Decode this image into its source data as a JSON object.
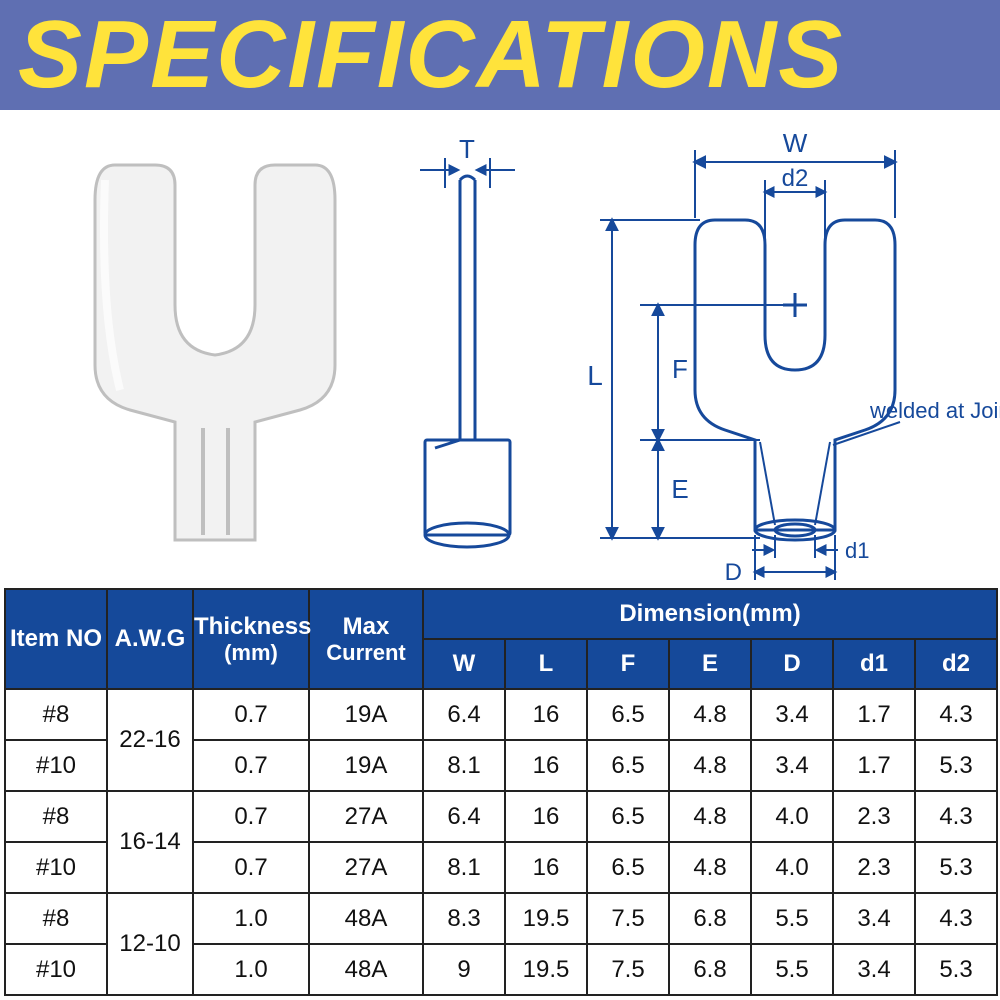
{
  "header": {
    "title": "SPECIFICATIONS"
  },
  "colors": {
    "header_bg": "#5f6fb2",
    "header_text": "#ffe33b",
    "table_header_bg": "#15499a",
    "table_header_text": "#ffffff",
    "border": "#222222",
    "diagram_stroke": "#16499b",
    "background": "#ffffff"
  },
  "diagram": {
    "labels": {
      "T": "T",
      "W": "W",
      "d2": "d2",
      "L": "L",
      "F": "F",
      "E": "E",
      "d1": "d1",
      "D": "D",
      "joint": "welded at Joints"
    }
  },
  "table": {
    "headers": {
      "item_no": "Item NO",
      "awg": "A.W.G",
      "thickness": "Thickness",
      "thickness_unit": "(mm)",
      "max_current": "Max",
      "max_current2": "Current",
      "dimension": "Dimension(mm)",
      "W": "W",
      "L": "L",
      "F": "F",
      "E": "E",
      "D": "D",
      "d1": "d1",
      "d2": "d2"
    },
    "groups": [
      {
        "awg": "22-16",
        "rows": [
          {
            "item": "#8",
            "thk": "0.7",
            "max": "19A",
            "W": "6.4",
            "L": "16",
            "F": "6.5",
            "E": "4.8",
            "D": "3.4",
            "d1": "1.7",
            "d2": "4.3"
          },
          {
            "item": "#10",
            "thk": "0.7",
            "max": "19A",
            "W": "8.1",
            "L": "16",
            "F": "6.5",
            "E": "4.8",
            "D": "3.4",
            "d1": "1.7",
            "d2": "5.3"
          }
        ]
      },
      {
        "awg": "16-14",
        "rows": [
          {
            "item": "#8",
            "thk": "0.7",
            "max": "27A",
            "W": "6.4",
            "L": "16",
            "F": "6.5",
            "E": "4.8",
            "D": "4.0",
            "d1": "2.3",
            "d2": "4.3"
          },
          {
            "item": "#10",
            "thk": "0.7",
            "max": "27A",
            "W": "8.1",
            "L": "16",
            "F": "6.5",
            "E": "4.8",
            "D": "4.0",
            "d1": "2.3",
            "d2": "5.3"
          }
        ]
      },
      {
        "awg": "12-10",
        "rows": [
          {
            "item": "#8",
            "thk": "1.0",
            "max": "48A",
            "W": "8.3",
            "L": "19.5",
            "F": "7.5",
            "E": "6.8",
            "D": "5.5",
            "d1": "3.4",
            "d2": "4.3"
          },
          {
            "item": "#10",
            "thk": "1.0",
            "max": "48A",
            "W": "9",
            "L": "19.5",
            "F": "7.5",
            "E": "6.8",
            "D": "5.5",
            "d1": "3.4",
            "d2": "5.3"
          }
        ]
      }
    ]
  }
}
